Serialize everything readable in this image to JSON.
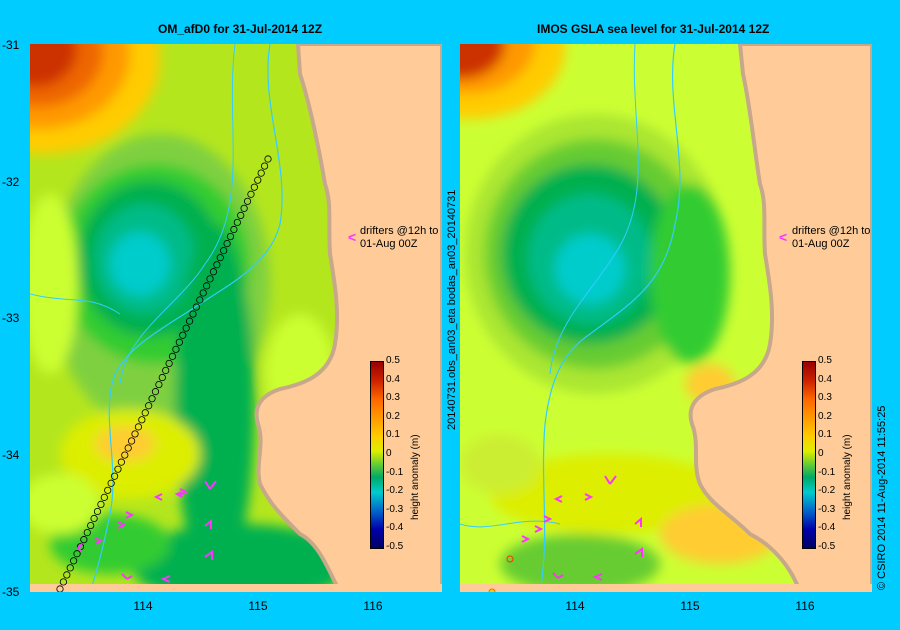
{
  "left_panel": {
    "title": "OM_afD0 for 31-Jul-2014 12Z",
    "annotation_line1": "drifters @12h to",
    "annotation_line2": "01-Aug 00Z"
  },
  "right_panel": {
    "title": "IMOS GSLA sea level  for 31-Jul-2014 12Z",
    "annotation_line1": "drifters @12h to",
    "annotation_line2": "01-Aug 00Z",
    "side_label": "20140731.obs_an03_eta   bodas_an03_20140731"
  },
  "y_ticks": [
    "-31",
    "-32",
    "-33",
    "-34",
    "-35"
  ],
  "x_ticks": [
    "114",
    "115",
    "116"
  ],
  "colorbar": {
    "label": "height anomaly (m)",
    "ticks": [
      "0.5",
      "0.4",
      "0.3",
      "0.2",
      "0.1",
      "0",
      "-0.1",
      "-0.2",
      "-0.3",
      "-0.4",
      "-0.5"
    ]
  },
  "footer": "© CSIRO 2014   11-Aug-2014 11:55:25",
  "colors": {
    "background": "#00ccff",
    "land": "#ffcc99",
    "coast": "#c8a88a",
    "drifter_arrow": "#ff33ff"
  }
}
